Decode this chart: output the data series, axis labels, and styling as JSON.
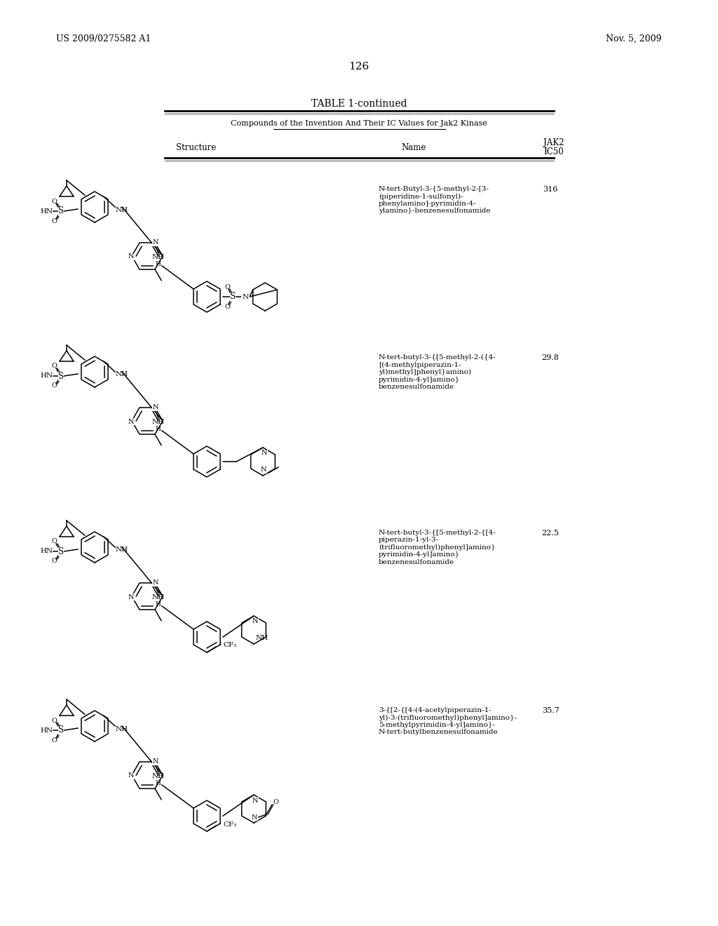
{
  "patent_number": "US 2009/0275582 A1",
  "patent_date": "Nov. 5, 2009",
  "page_number": "126",
  "table_title": "TABLE 1-continued",
  "table_subtitle": "Compounds of the Invention And Their IC Values for Jak2 Kinase",
  "col_structure": "Structure",
  "col_name": "Name",
  "col_jak2": "JAK2",
  "col_ic50": "IC50",
  "background_color": "#ffffff",
  "text_color": "#000000",
  "rows": [
    {
      "name": "N-tert-Butyl-3-{5-methyl-2-[3-\n(piperidine-1-sulfonyl)-\nphenylamino]-pyrimidin-4-\nylamino}-benzenesulfonamide",
      "ic50": "316"
    },
    {
      "name": "N-tert-butyl-3-{[5-methyl-2-({4-\n[(4-methylpiperazin-1-\nyl)methyl]phenyl}amino)\npyrimidin-4-yl]amino}\nbenzenesulfonamide",
      "ic50": "29.8"
    },
    {
      "name": "N-tert-butyl-3-{[5-methyl-2-{[4-\npiperazin-1-yl-3-\n(trifluoromethyl)phenyl]amino}\npyrimidin-4-yl]amino}\nbenzenesulfonamide",
      "ic50": "22.5"
    },
    {
      "name": "3-{[2-{[4-(4-acetylpiperazin-1-\nyl)-3-(trifluoromethyl)phenyl]amino}-\n5-methylpyrimidin-4-yl]amino}-\nN-tert-butylbenzenesulfonamide",
      "ic50": "35.7"
    }
  ]
}
